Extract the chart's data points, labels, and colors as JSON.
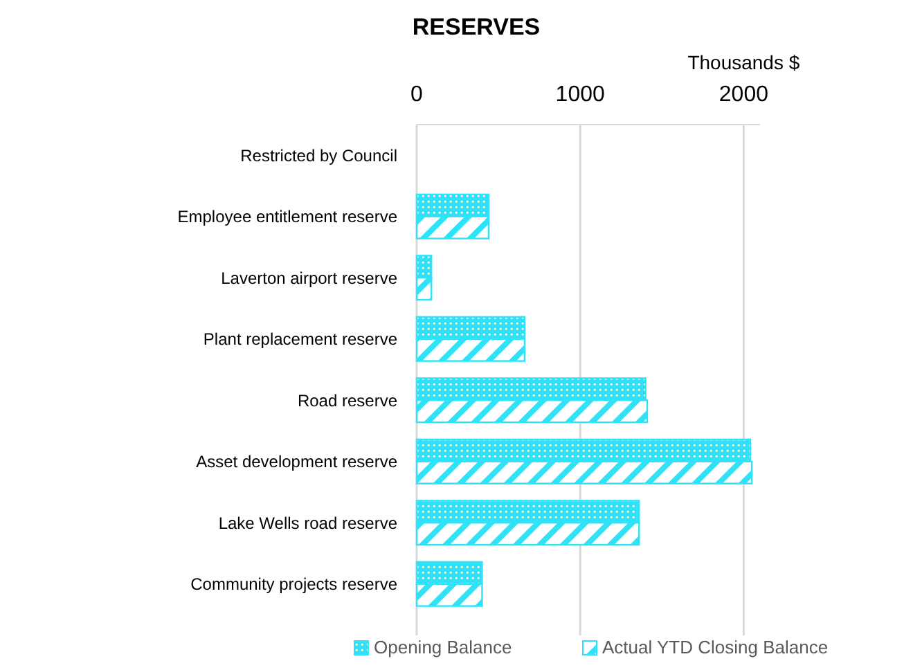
{
  "chart_data": {
    "type": "bar",
    "orientation": "horizontal",
    "title": "RESERVES",
    "xlabel": "Thousands $",
    "categories": [
      "Restricted by Council",
      "Employee entitlement reserve",
      "Laverton airport reserve",
      "Plant replacement reserve",
      "Road reserve",
      "Asset development reserve",
      "Lake Wells road reserve",
      "Community projects reserve"
    ],
    "series": [
      {
        "name": "Opening  Balance",
        "color": "#2ee3f7",
        "values": [
          0,
          440,
          90,
          660,
          1400,
          2040,
          1360,
          400
        ]
      },
      {
        "name": "Actual YTD Closing Balance",
        "color": "#2ee3f7",
        "values": [
          0,
          440,
          90,
          660,
          1410,
          2050,
          1360,
          400
        ]
      }
    ],
    "xlim": [
      0,
      2100
    ],
    "xticks": [
      0,
      1000,
      2000
    ],
    "grid": "x",
    "legend": "bottom"
  }
}
